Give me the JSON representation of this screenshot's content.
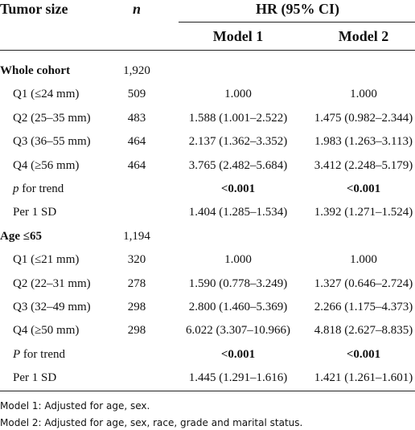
{
  "header": {
    "tumor_size": "Tumor size",
    "n": "n",
    "hr": "HR (95% CI)",
    "model1": "Model 1",
    "model2": "Model 2"
  },
  "sections": [
    {
      "title": "Whole cohort",
      "n": "1,920",
      "rows": [
        {
          "label": "Q1 (≤24 mm)",
          "n": "509",
          "model1": "1.000",
          "model2": "1.000"
        },
        {
          "label": "Q2 (25–35 mm)",
          "n": "483",
          "model1": "1.588 (1.001–2.522)",
          "model2": "1.475 (0.982–2.344)"
        },
        {
          "label": "Q3 (36–55 mm)",
          "n": "464",
          "model1": "2.137 (1.362–3.352)",
          "model2": "1.983 (1.263–3.113)"
        },
        {
          "label": "Q4 (≥56 mm)",
          "n": "464",
          "model1": "3.765 (2.482–5.684)",
          "model2": "3.412 (2.248–5.179)"
        },
        {
          "label": [
            "p",
            "for trend"
          ],
          "model1": "<0.001",
          "model2": "<0.001",
          "bold": true
        },
        {
          "label": "Per 1 SD",
          "model1": "1.404 (1.285–1.534)",
          "model2": "1.392 (1.271–1.524)"
        }
      ]
    },
    {
      "title": "Age ≤65",
      "n": "1,194",
      "rows": [
        {
          "label": "Q1 (≤21 mm)",
          "n": "320",
          "model1": "1.000",
          "model2": "1.000"
        },
        {
          "label": "Q2 (22–31 mm)",
          "n": "278",
          "model1": "1.590 (0.778–3.249)",
          "model2": "1.327 (0.646–2.724)"
        },
        {
          "label": "Q3 (32–49 mm)",
          "n": "298",
          "model1": "2.800 (1.460–5.369)",
          "model2": "2.266 (1.175–4.373)"
        },
        {
          "label": "Q4 (≥50 mm)",
          "n": "298",
          "model1": "6.022 (3.307–10.966)",
          "model2": "4.818 (2.627–8.835)"
        },
        {
          "label": [
            "P",
            "for trend"
          ],
          "model1": "<0.001",
          "model2": "<0.001",
          "bold": true
        },
        {
          "label": "Per 1 SD",
          "model1": "1.445 (1.291–1.616)",
          "model2": "1.421 (1.261–1.601)"
        }
      ]
    }
  ],
  "footnotes": [
    "Model 1: Adjusted for age, sex.",
    "Model 2: Adjusted for age, sex, race, grade and marital status."
  ]
}
